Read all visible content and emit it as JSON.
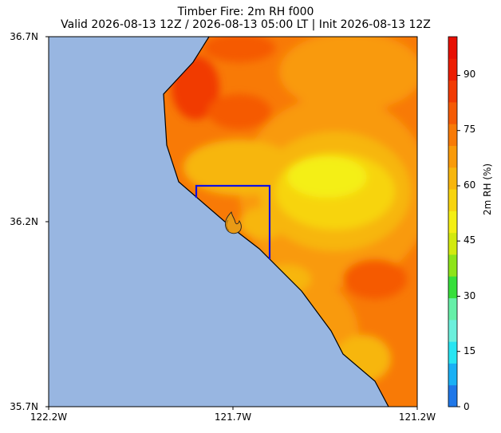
{
  "title": {
    "line1": "Timber Fire: 2m RH f000",
    "line2": "Valid 2026-08-13 12Z / 2026-08-13 05:00 LT | Init 2026-08-13 12Z"
  },
  "map": {
    "lat_ticks": [
      "36.7N",
      "36.2N",
      "35.7N"
    ],
    "lon_ticks": [
      "122.2W",
      "121.7W",
      "121.2W"
    ],
    "ocean_color": "#98b6e1",
    "domain_box_color": "#1010e0",
    "fire_marker": "fire-icon"
  },
  "colorbar": {
    "label": "2m RH (%)",
    "ticks": [
      "0",
      "15",
      "30",
      "45",
      "60",
      "75",
      "90"
    ],
    "colors": [
      "#1f77e8",
      "#19b0f5",
      "#27e5f2",
      "#6cf0dc",
      "#66f0a8",
      "#36df3b",
      "#8de419",
      "#d2ea0e",
      "#f4ef13",
      "#f7d40e",
      "#f7b60c",
      "#f99a08",
      "#f87a06",
      "#f55a04",
      "#f13a02",
      "#ec1d02",
      "#e70f02"
    ]
  }
}
